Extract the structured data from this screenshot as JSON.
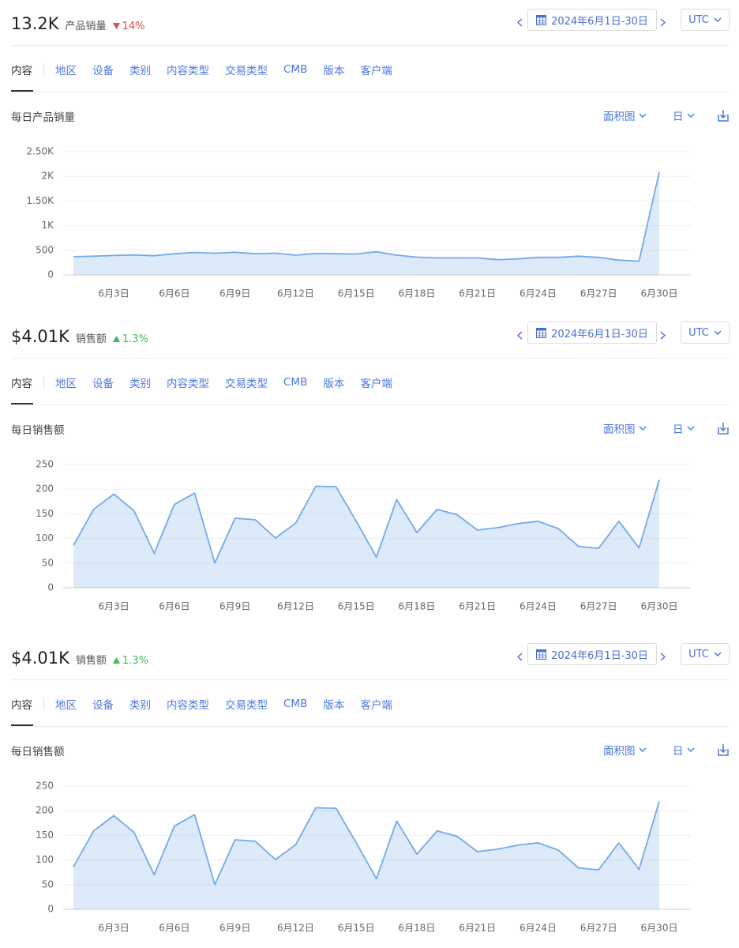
{
  "panels": [
    {
      "value": "13.2K",
      "metric": "产品销量",
      "change": "14%",
      "trend": "down",
      "date_range": "2024年6月1日-30日",
      "timezone": "UTC",
      "tabs": [
        "内容",
        "地区",
        "设备",
        "类别",
        "内容类型",
        "交易类型",
        "CMB",
        "版本",
        "客户端"
      ],
      "chart_type": "面积图",
      "interval": "日"
    },
    {
      "value": "$4.01K",
      "metric": "销售额",
      "change": "1.3%",
      "trend": "up",
      "date_range": "2024年6月1日-30日",
      "timezone": "UTC",
      "tabs": [
        "内容",
        "地区",
        "设备",
        "类别",
        "内容类型",
        "交易类型",
        "CMB",
        "版本",
        "客户端"
      ],
      "chart_type": "面积图",
      "interval": "日"
    },
    {
      "value": "$4.01K",
      "metric": "销售额",
      "change": "1.3%",
      "trend": "up",
      "date_range": "2024年6月1日-30日",
      "timezone": "UTC",
      "tabs": [
        "内容",
        "地区",
        "设备",
        "类别",
        "内容类型",
        "交易类型",
        "CMB",
        "版本",
        "客户端"
      ],
      "chart_type": "面积图",
      "interval": "日"
    }
  ],
  "chart_data": [
    {
      "type": "area",
      "title": "每日产品销量",
      "categories": [
        null,
        null,
        "6月3日",
        null,
        null,
        "6月6日",
        null,
        null,
        "6月9日",
        null,
        null,
        "6月12日",
        null,
        null,
        "6月15日",
        null,
        null,
        "6月18日",
        null,
        null,
        "6月21日",
        null,
        null,
        "6月24日",
        null,
        null,
        "6月27日",
        null,
        null,
        "6月30日"
      ],
      "values": [
        370,
        380,
        395,
        405,
        390,
        430,
        455,
        440,
        460,
        430,
        440,
        400,
        435,
        430,
        425,
        470,
        400,
        360,
        345,
        345,
        345,
        310,
        325,
        355,
        355,
        380,
        355,
        300,
        280,
        2090
      ],
      "color": "#74aaea",
      "ylim": [
        0,
        2500
      ],
      "yticks": [
        0,
        500,
        {
          "value": 1000,
          "label": "1K"
        },
        {
          "value": 1500,
          "label": "1.50K"
        },
        {
          "value": 2000,
          "label": "2K"
        },
        {
          "value": 2500,
          "label": "2.50K"
        }
      ],
      "grid": true
    },
    {
      "type": "area",
      "title": "每日销售额",
      "categories": [
        null,
        null,
        "6月3日",
        null,
        null,
        "6月6日",
        null,
        null,
        "6月9日",
        null,
        null,
        "6月12日",
        null,
        null,
        "6月15日",
        null,
        null,
        "6月18日",
        null,
        null,
        "6月21日",
        null,
        null,
        "6月24日",
        null,
        null,
        "6月27日",
        null,
        null,
        "6月30日"
      ],
      "values": [
        86,
        159,
        190,
        156,
        70,
        169,
        192,
        50,
        141,
        138,
        101,
        131,
        206,
        205,
        135,
        62,
        179,
        112,
        159,
        148,
        117,
        122,
        130,
        135,
        120,
        84,
        80,
        135,
        81,
        219
      ],
      "color": "#74aaea",
      "ylim": [
        0,
        250
      ],
      "yticks": [
        0,
        50,
        100,
        150,
        200,
        250
      ],
      "grid": true
    },
    {
      "type": "area",
      "title": "每日销售额",
      "categories": [
        null,
        null,
        "6月3日",
        null,
        null,
        "6月6日",
        null,
        null,
        "6月9日",
        null,
        null,
        "6月12日",
        null,
        null,
        "6月15日",
        null,
        null,
        "6月18日",
        null,
        null,
        "6月21日",
        null,
        null,
        "6月24日",
        null,
        null,
        "6月27日",
        null,
        null,
        "6月30日"
      ],
      "values": [
        86,
        159,
        190,
        156,
        70,
        169,
        192,
        50,
        141,
        138,
        101,
        131,
        206,
        205,
        135,
        62,
        179,
        112,
        159,
        148,
        117,
        122,
        130,
        135,
        120,
        84,
        80,
        135,
        81,
        219
      ],
      "color": "#74aaea",
      "ylim": [
        0,
        250
      ],
      "yticks": [
        0,
        50,
        100,
        150,
        200,
        250
      ],
      "grid": true
    }
  ]
}
